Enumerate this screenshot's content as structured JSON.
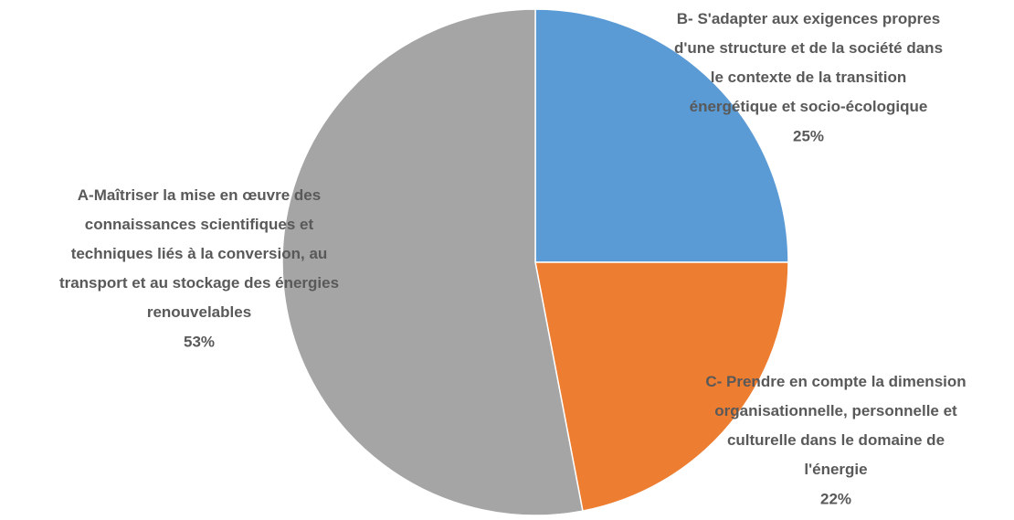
{
  "chart_data": {
    "type": "pie",
    "categories": [
      "B- S'adapter aux exigences propres d'une structure et de la société dans le contexte de la transition énergétique et socio-écologique",
      "C- Prendre en compte la dimension organisationnelle, personnelle et culturelle dans le domaine de l'énergie",
      "A-Maîtriser la mise en œuvre des connaissances scientifiques et techniques liés à la conversion, au transport et au stockage des énergies renouvelables"
    ],
    "values": [
      25,
      22,
      53
    ],
    "value_labels": [
      "25%",
      "22%",
      "53%"
    ],
    "colors": [
      "#5b9bd5",
      "#ed7d31",
      "#a5a5a5"
    ]
  }
}
